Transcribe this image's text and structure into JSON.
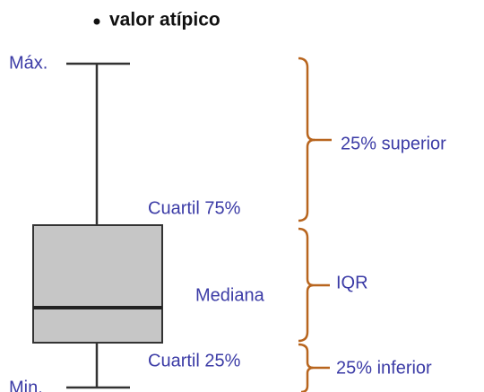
{
  "title": "valor atípico",
  "labels": {
    "max": "Máx.",
    "q3": "Cuartil 75%",
    "median": "Mediana",
    "q1": "Cuartil 25%",
    "min": "Min."
  },
  "brackets": {
    "upper": "25% superior",
    "iqr": "IQR",
    "lower": "25% inferior"
  }
}
